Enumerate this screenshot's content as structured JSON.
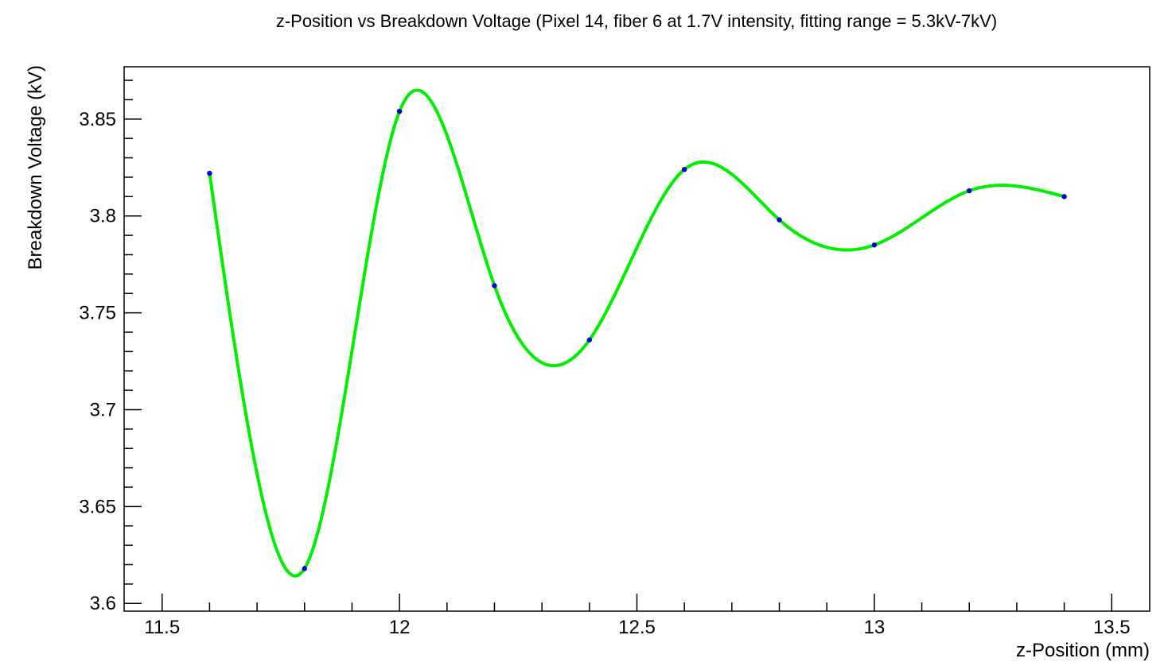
{
  "chart_data": {
    "type": "line",
    "title": "z-Position vs Breakdown Voltage (Pixel 14, fiber 6 at 1.7V intensity, fitting range = 5.3kV-7kV)",
    "xlabel": "z-Position (mm)",
    "ylabel": "Breakdown Voltage (kV)",
    "xlim": [
      11.42,
      13.58
    ],
    "ylim": [
      3.596,
      3.877
    ],
    "x_ticks": [
      11.5,
      12,
      12.5,
      13,
      13.5
    ],
    "x_tick_labels": [
      "11.5",
      "12",
      "12.5",
      "13",
      "13.5"
    ],
    "y_ticks": [
      3.6,
      3.65,
      3.7,
      3.75,
      3.8,
      3.85
    ],
    "y_tick_labels": [
      "3.6",
      "3.65",
      "3.7",
      "3.75",
      "3.8",
      "3.85"
    ],
    "grid": false,
    "series": [
      {
        "x": [
          11.6,
          11.8,
          12.0,
          12.2,
          12.4,
          12.6,
          12.8,
          13.0,
          13.2,
          13.4
        ],
        "y": [
          3.822,
          3.618,
          3.854,
          3.764,
          3.736,
          3.824,
          3.798,
          3.785,
          3.813,
          3.81
        ],
        "marker_color": "#0000cc",
        "line_color": "#00ee00",
        "line_style": "smooth"
      }
    ]
  }
}
